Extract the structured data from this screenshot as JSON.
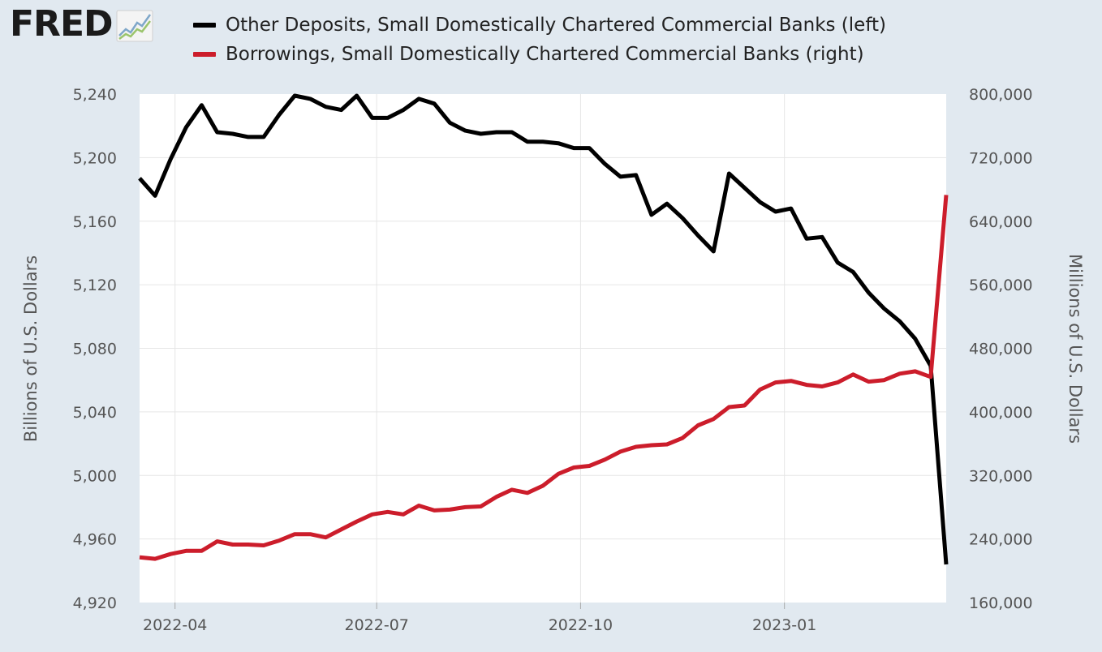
{
  "logo": {
    "text": "FRED",
    "icon": "trend-chart-icon"
  },
  "legend": [
    {
      "label": "Other Deposits, Small Domestically Chartered Commercial Banks (left)",
      "color": "#000000"
    },
    {
      "label": "Borrowings, Small Domestically Chartered Commercial Banks (right)",
      "color": "#cc1d2b"
    }
  ],
  "chart_data": {
    "type": "line",
    "title": "",
    "xlabel": "",
    "ylabel_left": "Billions of U.S. Dollars",
    "ylabel_right": "Millions of U.S. Dollars",
    "ylim_left": [
      4920,
      5240
    ],
    "ylim_right": [
      160000,
      800000
    ],
    "yticks_left": [
      "5,240",
      "5,200",
      "5,160",
      "5,120",
      "5,080",
      "5,040",
      "5,000",
      "4,960",
      "4,920"
    ],
    "yticks_right": [
      "800,000",
      "720,000",
      "640,000",
      "560,000",
      "480,000",
      "400,000",
      "320,000",
      "240,000",
      "160,000"
    ],
    "x_range": [
      "2022-03-16",
      "2023-03-15"
    ],
    "xticks": [
      {
        "date": "2022-04-01",
        "label": "2022-04"
      },
      {
        "date": "2022-07-01",
        "label": "2022-07"
      },
      {
        "date": "2022-10-01",
        "label": "2022-10"
      },
      {
        "date": "2023-01-01",
        "label": "2023-01"
      }
    ],
    "grid": true,
    "legend_position": "top",
    "x": [
      "2022-03-16",
      "2022-03-23",
      "2022-03-30",
      "2022-04-06",
      "2022-04-13",
      "2022-04-20",
      "2022-04-27",
      "2022-05-04",
      "2022-05-11",
      "2022-05-18",
      "2022-05-25",
      "2022-06-01",
      "2022-06-08",
      "2022-06-15",
      "2022-06-22",
      "2022-06-29",
      "2022-07-06",
      "2022-07-13",
      "2022-07-20",
      "2022-07-27",
      "2022-08-03",
      "2022-08-10",
      "2022-08-17",
      "2022-08-24",
      "2022-08-31",
      "2022-09-07",
      "2022-09-14",
      "2022-09-21",
      "2022-09-28",
      "2022-10-05",
      "2022-10-12",
      "2022-10-19",
      "2022-10-26",
      "2022-11-02",
      "2022-11-09",
      "2022-11-16",
      "2022-11-23",
      "2022-11-30",
      "2022-12-07",
      "2022-12-14",
      "2022-12-21",
      "2022-12-28",
      "2023-01-04",
      "2023-01-11",
      "2023-01-18",
      "2023-01-25",
      "2023-02-01",
      "2023-02-08",
      "2023-02-15",
      "2023-02-22",
      "2023-03-01",
      "2023-03-08",
      "2023-03-15"
    ],
    "series": [
      {
        "name": "Other Deposits, Small Domestically Chartered Commercial Banks (left)",
        "axis": "left",
        "color": "#000000",
        "values": [
          5187,
          5176,
          5199,
          5219,
          5233,
          5216,
          5215,
          5213,
          5213,
          5227,
          5239,
          5237,
          5232,
          5230,
          5239,
          5225,
          5225,
          5230,
          5237,
          5234,
          5222,
          5217,
          5215,
          5216,
          5216,
          5210,
          5210,
          5209,
          5206,
          5206,
          5196,
          5188,
          5189,
          5164,
          5171,
          5162,
          5151,
          5141,
          5190,
          5181,
          5172,
          5166,
          5168,
          5149,
          5150,
          5134,
          5128,
          5115,
          5105,
          5097,
          5086,
          5069,
          4944
        ]
      },
      {
        "name": "Borrowings, Small Domestically Chartered Commercial Banks (right)",
        "axis": "right",
        "color": "#cc1d2b",
        "values": [
          217000,
          215000,
          221000,
          225000,
          225000,
          237000,
          233000,
          233000,
          232000,
          238000,
          246000,
          246000,
          242000,
          252000,
          262000,
          271000,
          274000,
          271000,
          282000,
          276000,
          277000,
          280000,
          281000,
          293000,
          302000,
          298000,
          307000,
          322000,
          330000,
          332000,
          340000,
          350000,
          356000,
          358000,
          359000,
          367000,
          383000,
          391000,
          406000,
          408000,
          428000,
          437000,
          439000,
          434000,
          432000,
          437000,
          447000,
          438000,
          440000,
          448000,
          451000,
          444000,
          673000
        ]
      }
    ]
  }
}
